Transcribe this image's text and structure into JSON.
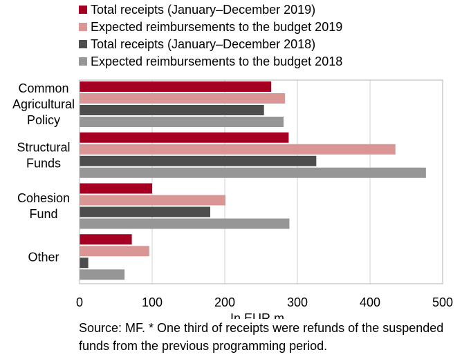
{
  "chart_data": {
    "type": "bar",
    "orientation": "horizontal",
    "categories": [
      [
        "Common",
        "Agricultural",
        "Policy"
      ],
      [
        "Structural",
        "Funds"
      ],
      [
        "Cohesion",
        "Fund"
      ],
      [
        "Other"
      ]
    ],
    "series": [
      {
        "name": "Total receipts (January–December 2019)",
        "color": "#a50021",
        "values": [
          264,
          288,
          100,
          72
        ]
      },
      {
        "name": "Expected reimbursements to the budget  2019",
        "color": "#d99694",
        "values": [
          283,
          435,
          201,
          96
        ]
      },
      {
        "name": "Total receipts (January–December 2018)",
        "color": "#4d4d4d",
        "values": [
          254,
          326,
          180,
          12
        ]
      },
      {
        "name": "Expected reimbursements to the budget 2018",
        "color": "#969696",
        "values": [
          281,
          477,
          289,
          62
        ]
      }
    ],
    "xlabel": "In EUR m",
    "xlim": [
      0,
      500
    ],
    "xticks": [
      0,
      100,
      200,
      300,
      400,
      500
    ],
    "grid": true,
    "legend": "top-left"
  },
  "source": "Source: MF. * One third of receipts were refunds of the suspended funds from the previous programming period."
}
